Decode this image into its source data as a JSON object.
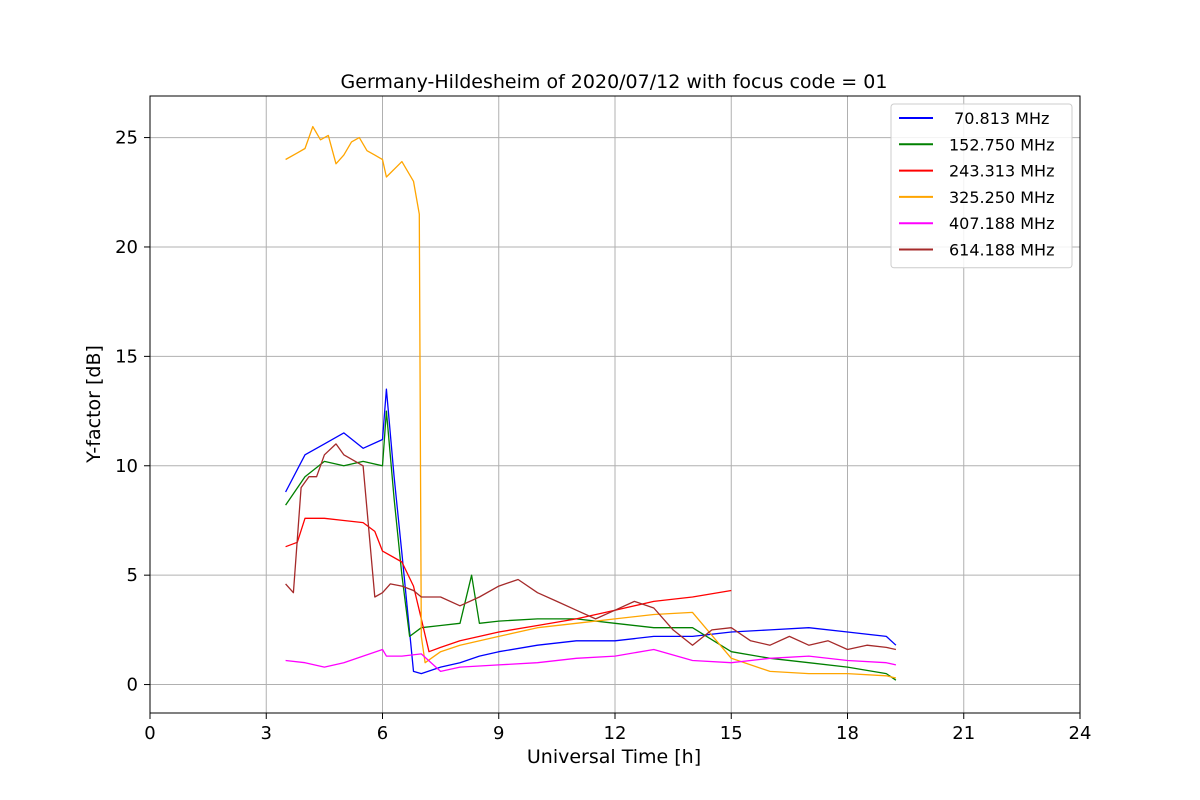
{
  "chart_data": {
    "type": "line",
    "title": "Germany-Hildesheim of 2020/07/12 with focus code = 01",
    "xlabel": "Universal Time [h]",
    "ylabel": "Y-factor [dB]",
    "xlim": [
      0,
      24
    ],
    "ylim": [
      -1.3,
      26.9
    ],
    "xticks": [
      0,
      3,
      6,
      9,
      12,
      15,
      18,
      21,
      24
    ],
    "yticks": [
      0,
      5,
      10,
      15,
      20,
      25
    ],
    "grid": true,
    "legend_position": "top-right",
    "series": [
      {
        "name": " 70.813 MHz",
        "color": "#0000ff",
        "x": [
          3.5,
          4.0,
          4.5,
          5.0,
          5.5,
          6.0,
          6.1,
          6.3,
          6.5,
          6.8,
          7.0,
          7.5,
          8.0,
          8.5,
          9.0,
          10.0,
          11.0,
          12.0,
          13.0,
          14.0,
          15.0,
          16.0,
          17.0,
          18.0,
          19.0,
          19.25
        ],
        "y": [
          8.8,
          10.5,
          11.0,
          11.5,
          10.8,
          11.2,
          13.5,
          9.5,
          6.0,
          0.6,
          0.5,
          0.8,
          1.0,
          1.3,
          1.5,
          1.8,
          2.0,
          2.0,
          2.2,
          2.2,
          2.4,
          2.5,
          2.6,
          2.4,
          2.2,
          1.8
        ]
      },
      {
        "name": "152.750 MHz",
        "color": "#008000",
        "x": [
          3.5,
          4.0,
          4.5,
          5.0,
          5.5,
          6.0,
          6.1,
          6.3,
          6.5,
          6.7,
          7.0,
          7.5,
          8.0,
          8.3,
          8.5,
          9.0,
          10.0,
          11.0,
          12.0,
          13.0,
          14.0,
          15.0,
          16.0,
          17.0,
          18.0,
          19.0,
          19.25
        ],
        "y": [
          8.2,
          9.5,
          10.2,
          10.0,
          10.2,
          10.0,
          12.5,
          8.5,
          5.0,
          2.2,
          2.6,
          2.7,
          2.8,
          5.0,
          2.8,
          2.9,
          3.0,
          3.0,
          2.8,
          2.6,
          2.6,
          1.5,
          1.2,
          1.0,
          0.8,
          0.5,
          0.2
        ]
      },
      {
        "name": "243.313 MHz",
        "color": "#ff0000",
        "x": [
          3.5,
          3.8,
          4.0,
          4.5,
          5.0,
          5.5,
          5.8,
          6.0,
          6.5,
          6.8,
          7.0,
          7.2,
          7.5,
          8.0,
          9.0,
          10.0,
          11.0,
          12.0,
          13.0,
          14.0,
          15.0
        ],
        "y": [
          6.3,
          6.5,
          7.6,
          7.6,
          7.5,
          7.4,
          7.0,
          6.1,
          5.6,
          4.5,
          3.0,
          1.5,
          1.7,
          2.0,
          2.4,
          2.7,
          3.0,
          3.4,
          3.8,
          4.0,
          4.3
        ]
      },
      {
        "name": "325.250 MHz",
        "color": "#ffa500",
        "x": [
          3.5,
          3.8,
          4.0,
          4.2,
          4.4,
          4.6,
          4.8,
          5.0,
          5.2,
          5.4,
          5.6,
          5.8,
          6.0,
          6.1,
          6.5,
          6.8,
          6.95,
          7.0,
          7.1,
          7.5,
          8.0,
          9.0,
          10.0,
          11.0,
          12.0,
          13.0,
          14.0,
          15.0,
          16.0,
          17.0,
          18.0,
          19.0,
          19.25
        ],
        "y": [
          24.0,
          24.3,
          24.5,
          25.5,
          24.9,
          25.1,
          23.8,
          24.2,
          24.8,
          25.0,
          24.4,
          24.2,
          24.0,
          23.2,
          23.9,
          23.0,
          21.5,
          2.2,
          1.0,
          1.5,
          1.8,
          2.2,
          2.6,
          2.8,
          3.0,
          3.2,
          3.3,
          1.2,
          0.6,
          0.5,
          0.5,
          0.4,
          0.3
        ]
      },
      {
        "name": "407.188 MHz",
        "color": "#ff00ff",
        "x": [
          3.5,
          4.0,
          4.5,
          5.0,
          5.5,
          6.0,
          6.1,
          6.5,
          7.0,
          7.5,
          8.0,
          9.0,
          10.0,
          11.0,
          12.0,
          13.0,
          14.0,
          15.0,
          16.0,
          17.0,
          18.0,
          19.0,
          19.25
        ],
        "y": [
          1.1,
          1.0,
          0.8,
          1.0,
          1.3,
          1.6,
          1.3,
          1.3,
          1.4,
          0.6,
          0.8,
          0.9,
          1.0,
          1.2,
          1.3,
          1.6,
          1.1,
          1.0,
          1.2,
          1.3,
          1.1,
          1.0,
          0.9
        ]
      },
      {
        "name": "614.188 MHz",
        "color": "#a52a2a",
        "x": [
          3.5,
          3.7,
          3.9,
          4.1,
          4.3,
          4.5,
          4.8,
          5.0,
          5.3,
          5.5,
          5.8,
          6.0,
          6.2,
          6.5,
          6.8,
          7.0,
          7.5,
          8.0,
          8.5,
          9.0,
          9.5,
          10.0,
          10.5,
          11.0,
          11.5,
          12.0,
          12.5,
          13.0,
          13.5,
          14.0,
          14.5,
          15.0,
          15.5,
          16.0,
          16.5,
          17.0,
          17.5,
          18.0,
          18.5,
          19.0,
          19.25
        ],
        "y": [
          4.6,
          4.2,
          9.0,
          9.5,
          9.5,
          10.5,
          11.0,
          10.5,
          10.2,
          10.0,
          4.0,
          4.2,
          4.6,
          4.5,
          4.3,
          4.0,
          4.0,
          3.6,
          4.0,
          4.5,
          4.8,
          4.2,
          3.8,
          3.4,
          3.0,
          3.4,
          3.8,
          3.5,
          2.5,
          1.8,
          2.5,
          2.6,
          2.0,
          1.8,
          2.2,
          1.8,
          2.0,
          1.6,
          1.8,
          1.7,
          1.6
        ]
      }
    ]
  }
}
